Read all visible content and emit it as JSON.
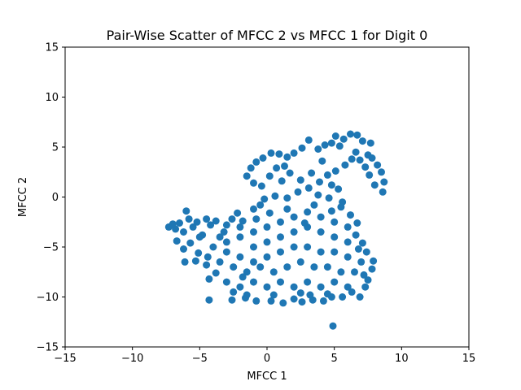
{
  "chart_data": {
    "type": "scatter",
    "title": "Pair-Wise Scatter of MFCC 2 vs MFCC 1 for Digit 0",
    "xlabel": "MFCC 1",
    "ylabel": "MFCC 2",
    "xlim": [
      -15,
      15
    ],
    "ylim": [
      -15,
      15
    ],
    "xticks": [
      -15,
      -10,
      -5,
      0,
      5,
      10,
      15
    ],
    "yticks": [
      -15,
      -10,
      -5,
      0,
      5,
      10,
      15
    ],
    "xtick_labels": [
      "−15",
      "−10",
      "−5",
      "0",
      "5",
      "10",
      "15"
    ],
    "ytick_labels": [
      "−15",
      "−10",
      "−5",
      "0",
      "5",
      "10",
      "15"
    ],
    "grid": false,
    "color": "#1f77b4",
    "series": [
      {
        "points": [
          [
            -7.3,
            -3.0
          ],
          [
            -7.0,
            -2.7
          ],
          [
            -6.8,
            -3.2
          ],
          [
            -6.5,
            -2.6
          ],
          [
            -6.2,
            -3.5
          ],
          [
            -6.0,
            -1.4
          ],
          [
            -5.8,
            -2.2
          ],
          [
            -5.5,
            -3.0
          ],
          [
            -5.2,
            -2.5
          ],
          [
            -4.8,
            -3.8
          ],
          [
            -4.5,
            -2.2
          ],
          [
            -4.2,
            -2.8
          ],
          [
            -3.8,
            -2.4
          ],
          [
            -3.5,
            -4.0
          ],
          [
            -3.0,
            -2.8
          ],
          [
            -2.6,
            -2.2
          ],
          [
            -2.2,
            -1.6
          ],
          [
            -1.8,
            -2.4
          ],
          [
            -1.0,
            -1.2
          ],
          [
            -0.5,
            -0.8
          ],
          [
            -6.7,
            -4.4
          ],
          [
            -6.2,
            -5.2
          ],
          [
            -5.7,
            -4.6
          ],
          [
            -5.1,
            -5.6
          ],
          [
            -4.4,
            -6.0
          ],
          [
            -6.1,
            -6.5
          ],
          [
            -5.3,
            -6.4
          ],
          [
            -4.3,
            -8.2
          ],
          [
            -3.8,
            -7.6
          ],
          [
            -4.3,
            -10.3
          ],
          [
            -2.6,
            -10.3
          ],
          [
            -2.5,
            -9.5
          ],
          [
            -1.6,
            -10.1
          ],
          [
            -0.8,
            -10.4
          ],
          [
            0.3,
            -10.4
          ],
          [
            1.2,
            -10.6
          ],
          [
            2.0,
            -10.2
          ],
          [
            2.6,
            -10.5
          ],
          [
            3.4,
            -10.3
          ],
          [
            4.2,
            -10.4
          ],
          [
            4.8,
            -10.0
          ],
          [
            5.6,
            -10.0
          ],
          [
            6.3,
            -9.5
          ],
          [
            6.9,
            -10.0
          ],
          [
            7.3,
            -9.0
          ],
          [
            7.5,
            -8.3
          ],
          [
            7.8,
            -7.2
          ],
          [
            7.9,
            -6.4
          ],
          [
            7.4,
            -5.5
          ],
          [
            7.1,
            -4.6
          ],
          [
            6.6,
            -3.8
          ],
          [
            6.7,
            -2.6
          ],
          [
            6.2,
            -1.8
          ],
          [
            5.6,
            -0.5
          ],
          [
            5.3,
            0.8
          ],
          [
            4.8,
            1.2
          ],
          [
            4.5,
            2.2
          ],
          [
            5.1,
            2.6
          ],
          [
            5.8,
            3.2
          ],
          [
            6.3,
            3.8
          ],
          [
            6.6,
            4.5
          ],
          [
            6.9,
            3.7
          ],
          [
            7.3,
            3.0
          ],
          [
            7.5,
            4.2
          ],
          [
            7.8,
            3.9
          ],
          [
            8.2,
            3.2
          ],
          [
            8.5,
            2.5
          ],
          [
            8.7,
            1.5
          ],
          [
            8.6,
            0.5
          ],
          [
            8.0,
            1.2
          ],
          [
            7.6,
            2.2
          ],
          [
            7.1,
            5.6
          ],
          [
            6.7,
            6.2
          ],
          [
            6.2,
            6.3
          ],
          [
            5.7,
            5.8
          ],
          [
            5.1,
            6.1
          ],
          [
            4.8,
            5.4
          ],
          [
            4.3,
            5.2
          ],
          [
            3.8,
            4.8
          ],
          [
            3.1,
            5.7
          ],
          [
            2.6,
            4.9
          ],
          [
            2.0,
            4.4
          ],
          [
            1.5,
            4.0
          ],
          [
            0.9,
            4.3
          ],
          [
            0.3,
            4.4
          ],
          [
            -0.3,
            3.9
          ],
          [
            -0.8,
            3.5
          ],
          [
            -1.2,
            2.9
          ],
          [
            -1.5,
            2.1
          ],
          [
            -1.0,
            1.4
          ],
          [
            -0.4,
            1.1
          ],
          [
            0.2,
            2.1
          ],
          [
            0.7,
            2.9
          ],
          [
            1.3,
            3.1
          ],
          [
            1.7,
            2.4
          ],
          [
            1.1,
            1.6
          ],
          [
            2.5,
            1.7
          ],
          [
            3.3,
            2.4
          ],
          [
            3.9,
            1.5
          ],
          [
            4.1,
            3.6
          ],
          [
            5.4,
            5.1
          ],
          [
            7.7,
            5.4
          ],
          [
            4.9,
            -12.9
          ],
          [
            -0.2,
            -0.2
          ],
          [
            0.6,
            0.1
          ],
          [
            1.5,
            -0.1
          ],
          [
            2.3,
            0.5
          ],
          [
            3.1,
            0.9
          ],
          [
            3.8,
            0.2
          ],
          [
            4.6,
            -0.1
          ],
          [
            5.5,
            -1.0
          ],
          [
            -1.0,
            -3.5
          ],
          [
            0.0,
            -3.0
          ],
          [
            1.0,
            -2.5
          ],
          [
            2.0,
            -2.0
          ],
          [
            3.0,
            -1.5
          ],
          [
            4.0,
            -2.0
          ],
          [
            5.0,
            -2.5
          ],
          [
            6.0,
            -3.0
          ],
          [
            -3.0,
            -4.5
          ],
          [
            -2.0,
            -4.0
          ],
          [
            -1.0,
            -5.0
          ],
          [
            0.0,
            -4.5
          ],
          [
            1.0,
            -4.0
          ],
          [
            2.0,
            -3.5
          ],
          [
            3.0,
            -3.0
          ],
          [
            4.0,
            -3.5
          ],
          [
            5.0,
            -4.0
          ],
          [
            6.0,
            -4.5
          ],
          [
            -4.0,
            -5.0
          ],
          [
            -3.0,
            -5.5
          ],
          [
            -2.0,
            -6.0
          ],
          [
            -1.0,
            -6.5
          ],
          [
            0.0,
            -6.0
          ],
          [
            1.0,
            -5.5
          ],
          [
            2.0,
            -5.0
          ],
          [
            3.0,
            -5.0
          ],
          [
            4.0,
            -5.5
          ],
          [
            5.0,
            -5.5
          ],
          [
            6.0,
            -6.0
          ],
          [
            7.0,
            -6.5
          ],
          [
            -3.5,
            -6.5
          ],
          [
            -2.5,
            -7.0
          ],
          [
            -1.5,
            -7.5
          ],
          [
            -0.5,
            -7.0
          ],
          [
            0.5,
            -7.5
          ],
          [
            1.5,
            -7.0
          ],
          [
            2.5,
            -6.5
          ],
          [
            3.5,
            -7.0
          ],
          [
            4.5,
            -7.0
          ],
          [
            5.5,
            -7.5
          ],
          [
            6.5,
            -7.5
          ],
          [
            -3.0,
            -8.5
          ],
          [
            -2.0,
            -9.0
          ],
          [
            -1.0,
            -8.5
          ],
          [
            0.0,
            -9.0
          ],
          [
            1.0,
            -8.5
          ],
          [
            2.0,
            -9.0
          ],
          [
            3.0,
            -8.5
          ],
          [
            4.0,
            -9.0
          ],
          [
            5.0,
            -8.5
          ],
          [
            6.0,
            -9.0
          ],
          [
            -1.5,
            -9.8
          ],
          [
            0.5,
            -9.8
          ],
          [
            2.5,
            -9.6
          ],
          [
            4.5,
            -9.7
          ],
          [
            -5.0,
            -4.0
          ],
          [
            -4.5,
            -6.8
          ],
          [
            -2.0,
            -3.0
          ],
          [
            1.5,
            -1.2
          ],
          [
            3.5,
            -0.8
          ],
          [
            0.2,
            -1.6
          ],
          [
            -0.8,
            -2.2
          ],
          [
            6.8,
            -5.2
          ],
          [
            7.2,
            -7.8
          ],
          [
            -3.2,
            -3.5
          ],
          [
            2.8,
            -2.6
          ],
          [
            4.8,
            -1.4
          ],
          [
            -1.8,
            -8.0
          ],
          [
            3.2,
            -9.8
          ]
        ]
      }
    ]
  }
}
